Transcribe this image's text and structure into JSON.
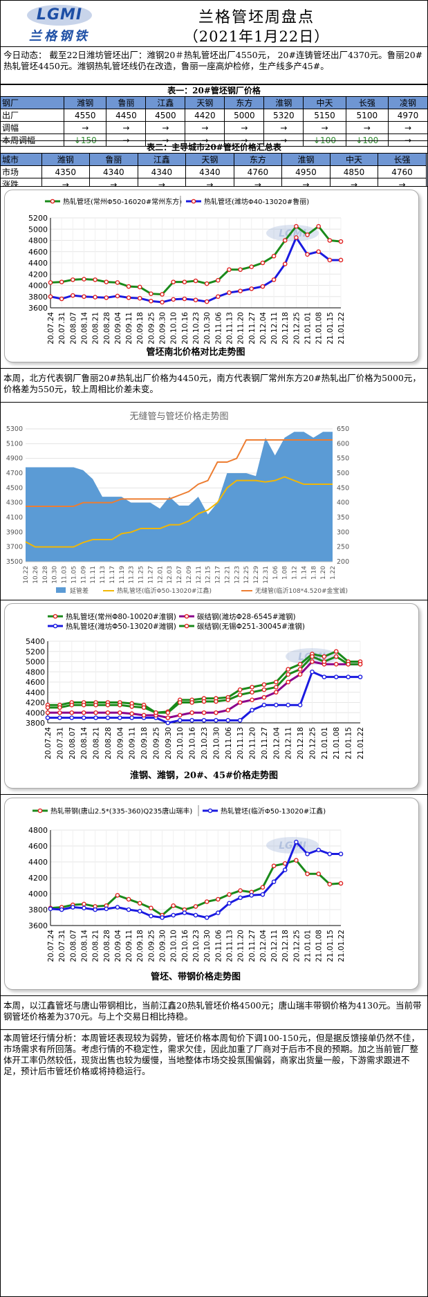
{
  "header": {
    "logo_text": "LGMI",
    "logo_cn": "兰格钢铁",
    "title": "兰格管坯周盘点",
    "date": "（2021年1月22日）"
  },
  "news": {
    "text": "今日动态：  截至22日潍坊管坯出厂：潍钢20＃热轧管坯出厂4550元，  20#连铸管坯出厂4370元。鲁丽20#热轧管坯4450元。潍钢热轧管坯线仍在改造，鲁丽一座高炉检修，生产线多产45#。"
  },
  "table1": {
    "caption": "表一：20#管坯钢厂价格",
    "headers": [
      "钢厂",
      "潍钢",
      "鲁丽",
      "江鑫",
      "天钢",
      "东方",
      "淮钢",
      "中天",
      "长强",
      "凌钢"
    ],
    "rows": [
      [
        "出厂",
        "4550",
        "4450",
        "4500",
        "4420",
        "5000",
        "5320",
        "5150",
        "5100",
        "4970"
      ],
      [
        "调幅",
        "→",
        "→",
        "→",
        "→",
        "→",
        "→",
        "→",
        "→",
        "→"
      ],
      [
        "本周调幅",
        "↓150",
        "→",
        "→",
        "→",
        "→",
        "→",
        "↓100",
        "↓100",
        "→"
      ]
    ]
  },
  "table2": {
    "caption": "表二：主导城市20#管坯价格汇总表",
    "headers": [
      "城市",
      "潍钢",
      "鲁丽",
      "江鑫",
      "天钢",
      "东方",
      "淮钢",
      "中天",
      "长强"
    ],
    "rows": [
      [
        "市场",
        "4350",
        "4340",
        "4340",
        "4340",
        "4760",
        "4950",
        "4850",
        "4760"
      ],
      [
        "涨跌",
        "→",
        "→",
        "→",
        "→",
        "→",
        "→",
        "→",
        "→"
      ]
    ]
  },
  "dates": [
    "20.07.24",
    "20.07.31",
    "20.08.07",
    "20.08.14",
    "20.08.21",
    "20.08.28",
    "20.09.04",
    "20.09.11",
    "20.09.18",
    "20.09.25",
    "20.09.30",
    "20.10.10",
    "20.10.16",
    "20.10.23",
    "20.10.30",
    "20.11.06",
    "20.11.13",
    "20.11.20",
    "20.11.27",
    "20.12.04",
    "20.12.11",
    "20.12.18",
    "20.12.25",
    "21.01.01",
    "21.01.08",
    "21.01.15",
    "21.01.22"
  ],
  "chart_data": [
    {
      "type": "line",
      "title": "管坯南北价格对比走势图",
      "x_ref": "dates",
      "ylim": [
        3600,
        5200
      ],
      "yticks": [
        3600,
        3800,
        4000,
        4200,
        4400,
        4600,
        4800,
        5000,
        5200
      ],
      "legend_position": "top",
      "series": [
        {
          "name": "热轧管坯(常州Φ50-16020#常州东方)",
          "color": "#1a8a1a",
          "marker": "#e02020",
          "values": [
            4050,
            4060,
            4100,
            4110,
            4100,
            4060,
            4050,
            3980,
            3970,
            3850,
            3840,
            4060,
            4060,
            4080,
            4030,
            4090,
            4280,
            4280,
            4330,
            4400,
            4520,
            4800,
            5050,
            4900,
            5050,
            4800,
            4780
          ]
        },
        {
          "name": "热轧管坯(潍坊Φ40-13020#鲁丽)",
          "color": "#1a1ae0",
          "marker": "#e02020",
          "values": [
            3800,
            3760,
            3820,
            3800,
            3790,
            3780,
            3810,
            3780,
            3770,
            3720,
            3700,
            3750,
            3760,
            3740,
            3710,
            3800,
            3870,
            3900,
            3940,
            3980,
            4100,
            4380,
            4850,
            4550,
            4600,
            4450,
            4450
          ]
        }
      ]
    },
    {
      "type": "area",
      "title": "无缝管与管坯价格走势图",
      "x": [
        "10.22",
        "10.26",
        "10.28",
        "10.30",
        "11.03",
        "11.05",
        "11.09",
        "11.11",
        "11.13",
        "11.17",
        "11.19",
        "11.23",
        "11.25",
        "11.27",
        "12.01",
        "12.03",
        "12.07",
        "12.09",
        "12.11",
        "12.15",
        "12.17",
        "12.21",
        "12.23",
        "12.25",
        "12.29",
        "12.31",
        "1.06",
        "1.08",
        "1.12",
        "1.14",
        "1.18",
        "1.20",
        "1.22"
      ],
      "left_ylim": [
        3500,
        5300
      ],
      "right_ylim": [
        200,
        650
      ],
      "left_ticks": [
        3500,
        3700,
        3900,
        4100,
        4300,
        4500,
        4700,
        4900,
        5100,
        5300
      ],
      "right_ticks": [
        200,
        250,
        300,
        350,
        400,
        450,
        500,
        550,
        600,
        650
      ],
      "legend_position": "bottom",
      "series": [
        {
          "name": "延管差",
          "color": "#5b9bd5",
          "axis": "right",
          "values": [
            520,
            520,
            520,
            520,
            520,
            520,
            510,
            480,
            420,
            420,
            420,
            400,
            400,
            400,
            380,
            420,
            390,
            390,
            420,
            360,
            400,
            500,
            500,
            500,
            490,
            620,
            560,
            620,
            640,
            640,
            620,
            640,
            640
          ]
        },
        {
          "name": "热轧管坯(临沂Φ50-13020#江鑫)",
          "color": "#f2b705",
          "axis": "left",
          "values": [
            3770,
            3700,
            3700,
            3700,
            3700,
            3700,
            3760,
            3800,
            3800,
            3800,
            3880,
            3900,
            3950,
            3950,
            3950,
            4000,
            4000,
            4050,
            4150,
            4200,
            4300,
            4500,
            4600,
            4600,
            4600,
            4580,
            4600,
            4650,
            4600,
            4550,
            4550,
            4550,
            4550
          ]
        },
        {
          "name": "无缝管(临沂108*4.520#金宝诚)",
          "color": "#ed7d31",
          "axis": "left",
          "values": [
            4250,
            4250,
            4250,
            4250,
            4250,
            4250,
            4300,
            4300,
            4300,
            4300,
            4350,
            4350,
            4350,
            4350,
            4350,
            4350,
            4400,
            4450,
            4550,
            4600,
            4850,
            4850,
            4900,
            5150,
            5150,
            5150,
            5150,
            5150,
            5150,
            5150,
            5150,
            5150,
            5150
          ]
        }
      ]
    },
    {
      "type": "line",
      "title": "淮钢、潍钢，20#、45#价格走势图",
      "x_ref": "dates",
      "ylim": [
        3800,
        5400
      ],
      "yticks": [
        3800,
        4000,
        4200,
        4400,
        4600,
        4800,
        5000,
        5200,
        5400
      ],
      "legend_position": "top",
      "series": [
        {
          "name": "热轧管坯(常州Φ80-10020#淮钢)",
          "color": "#1a8a1a",
          "marker": "#e02020",
          "values": [
            4150,
            4150,
            4200,
            4200,
            4200,
            4200,
            4200,
            4180,
            4150,
            4000,
            4020,
            4250,
            4250,
            4280,
            4280,
            4300,
            4450,
            4500,
            4550,
            4600,
            4850,
            4950,
            5150,
            5100,
            5200,
            5000,
            5000
          ]
        },
        {
          "name": "热轧管坯(潍坊Φ50-13020#潍钢)",
          "color": "#1a1ae0",
          "marker": "#1a1ae0",
          "values": [
            3900,
            3900,
            3900,
            3900,
            3900,
            3900,
            3900,
            3900,
            3900,
            3900,
            3800,
            3850,
            3850,
            3850,
            3850,
            3850,
            3850,
            4050,
            4150,
            4150,
            4150,
            4150,
            4800,
            4700,
            4700,
            4700,
            4700
          ]
        },
        {
          "name": "碳结钢(潍坊Φ28-6545#潍钢)",
          "color": "#8b008b",
          "marker": "#e02020",
          "values": [
            4000,
            4000,
            4000,
            4000,
            4000,
            4000,
            4000,
            3980,
            3950,
            3950,
            3900,
            3950,
            4000,
            4000,
            4000,
            4050,
            4200,
            4250,
            4300,
            4400,
            4600,
            4750,
            5000,
            4950,
            4950,
            4950,
            4950
          ]
        },
        {
          "name": "碳结钢(无锡Φ251-30045#淮钢)",
          "color": "#1a8a1a",
          "marker": "#e02020",
          "values": [
            4100,
            4100,
            4150,
            4150,
            4150,
            4150,
            4150,
            4120,
            4100,
            4000,
            4000,
            4200,
            4200,
            4220,
            4220,
            4250,
            4350,
            4400,
            4450,
            4500,
            4750,
            4850,
            5100,
            5000,
            5100,
            4950,
            4950
          ]
        }
      ]
    },
    {
      "type": "line",
      "title": "管坯、带钢价格走势图",
      "x_ref": "dates",
      "ylim": [
        3600,
        4800
      ],
      "yticks": [
        3600,
        3800,
        4000,
        4200,
        4400,
        4600,
        4800
      ],
      "legend_position": "top",
      "series": [
        {
          "name": "热轧带钢(唐山2.5*(335-360)Q235唐山瑞丰)",
          "color": "#1a8a1a",
          "marker": "#e02020",
          "values": [
            3820,
            3830,
            3860,
            3870,
            3840,
            3850,
            3980,
            3930,
            3880,
            3820,
            3730,
            3850,
            3800,
            3840,
            3900,
            3930,
            3990,
            4040,
            4020,
            4080,
            4350,
            4380,
            4420,
            4250,
            4250,
            4120,
            4130
          ]
        },
        {
          "name": "热轧管坯(临沂Φ50-13020#江鑫)",
          "color": "#1a1ae0",
          "marker": "#1a1ae0",
          "values": [
            3810,
            3800,
            3830,
            3820,
            3800,
            3810,
            3830,
            3800,
            3780,
            3720,
            3700,
            3730,
            3760,
            3730,
            3700,
            3760,
            3880,
            3950,
            3980,
            3990,
            4150,
            4300,
            4650,
            4500,
            4550,
            4500,
            4500
          ]
        }
      ]
    }
  ],
  "analysis1": {
    "text": "本周，北方代表钢厂鲁丽20#热轧出厂价格为4450元，南方代表钢厂常州东方20#热轧出厂价格为5000元，价格差为550元，较上周相比价差未变。"
  },
  "analysis2": {
    "text": "本周，以江鑫管坯与唐山带钢相比，当前江鑫20热轧管坯价格4500元；唐山瑞丰带钢价格为4130元。当前带钢管坯价格差为370元。与上个交易日相比持稳。"
  },
  "analysis3": {
    "text": "本周管坯行情分析：本周管坯表现较为弱势，管坯价格本周旬价下调100-150元，但是据反馈接单仍然不佳，市场需求有所回落。考虑行情的不稳定性，需求欠佳，因此加重了厂商对于后市不良的预期。加之当前管厂整体开工率仍然较低，现货出售也较为缓慢，当地整体市场交投氛围偏弱，商家出货量一般，下游需求跟进不足，预计后市管坯价格或将持稳运行。"
  },
  "watermark": "LGMI 兰格钢铁"
}
